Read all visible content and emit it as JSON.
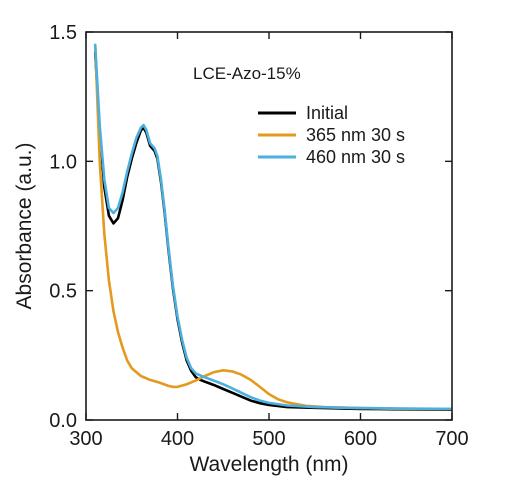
{
  "chart_data": {
    "type": "line",
    "title": "",
    "annotation": "LCE-Azo-15%",
    "xlabel": "Wavelength (nm)",
    "ylabel": "Absorbance (a.u.)",
    "xlim": [
      300,
      700
    ],
    "ylim": [
      0.0,
      1.5
    ],
    "x_ticks": [
      300,
      400,
      500,
      600,
      700
    ],
    "x_tick_labels": [
      "300",
      "400",
      "500",
      "600",
      "700"
    ],
    "y_ticks": [
      0.0,
      0.5,
      1.0,
      1.5
    ],
    "y_tick_labels": [
      "0.0",
      "0.5",
      "1.0",
      "1.5"
    ],
    "grid": false,
    "legend_position": "upper-right",
    "series": [
      {
        "name": "Initial",
        "color": "#000000",
        "points": [
          [
            310,
            1.42
          ],
          [
            315,
            1.12
          ],
          [
            320,
            0.9
          ],
          [
            325,
            0.79
          ],
          [
            330,
            0.76
          ],
          [
            335,
            0.78
          ],
          [
            340,
            0.85
          ],
          [
            345,
            0.94
          ],
          [
            350,
            1.01
          ],
          [
            355,
            1.07
          ],
          [
            360,
            1.12
          ],
          [
            363,
            1.13
          ],
          [
            366,
            1.11
          ],
          [
            370,
            1.06
          ],
          [
            375,
            1.04
          ],
          [
            378,
            1.01
          ],
          [
            382,
            0.92
          ],
          [
            386,
            0.8
          ],
          [
            390,
            0.66
          ],
          [
            395,
            0.51
          ],
          [
            400,
            0.39
          ],
          [
            405,
            0.3
          ],
          [
            410,
            0.23
          ],
          [
            415,
            0.19
          ],
          [
            420,
            0.165
          ],
          [
            425,
            0.155
          ],
          [
            430,
            0.148
          ],
          [
            440,
            0.135
          ],
          [
            450,
            0.12
          ],
          [
            460,
            0.105
          ],
          [
            470,
            0.09
          ],
          [
            480,
            0.075
          ],
          [
            490,
            0.065
          ],
          [
            500,
            0.058
          ],
          [
            520,
            0.05
          ],
          [
            550,
            0.047
          ],
          [
            600,
            0.043
          ],
          [
            650,
            0.041
          ],
          [
            700,
            0.04
          ]
        ]
      },
      {
        "name": "365 nm 30 s",
        "color": "#E39A1F",
        "points": [
          [
            310,
            1.45
          ],
          [
            315,
            1.0
          ],
          [
            320,
            0.72
          ],
          [
            325,
            0.54
          ],
          [
            330,
            0.42
          ],
          [
            335,
            0.34
          ],
          [
            340,
            0.28
          ],
          [
            345,
            0.23
          ],
          [
            350,
            0.2
          ],
          [
            355,
            0.185
          ],
          [
            360,
            0.17
          ],
          [
            370,
            0.155
          ],
          [
            380,
            0.145
          ],
          [
            390,
            0.132
          ],
          [
            395,
            0.128
          ],
          [
            400,
            0.128
          ],
          [
            410,
            0.138
          ],
          [
            420,
            0.153
          ],
          [
            430,
            0.17
          ],
          [
            440,
            0.185
          ],
          [
            450,
            0.192
          ],
          [
            460,
            0.188
          ],
          [
            470,
            0.175
          ],
          [
            480,
            0.155
          ],
          [
            490,
            0.128
          ],
          [
            500,
            0.1
          ],
          [
            510,
            0.08
          ],
          [
            520,
            0.068
          ],
          [
            540,
            0.055
          ],
          [
            560,
            0.05
          ],
          [
            600,
            0.046
          ],
          [
            650,
            0.043
          ],
          [
            700,
            0.042
          ]
        ]
      },
      {
        "name": "460 nm 30 s",
        "color": "#4BB0E0",
        "points": [
          [
            310,
            1.45
          ],
          [
            315,
            1.14
          ],
          [
            320,
            0.93
          ],
          [
            325,
            0.82
          ],
          [
            330,
            0.8
          ],
          [
            335,
            0.82
          ],
          [
            340,
            0.88
          ],
          [
            345,
            0.96
          ],
          [
            350,
            1.03
          ],
          [
            355,
            1.09
          ],
          [
            360,
            1.13
          ],
          [
            363,
            1.14
          ],
          [
            366,
            1.12
          ],
          [
            370,
            1.07
          ],
          [
            375,
            1.05
          ],
          [
            378,
            1.02
          ],
          [
            382,
            0.93
          ],
          [
            386,
            0.81
          ],
          [
            390,
            0.67
          ],
          [
            395,
            0.52
          ],
          [
            400,
            0.4
          ],
          [
            405,
            0.31
          ],
          [
            410,
            0.24
          ],
          [
            415,
            0.2
          ],
          [
            420,
            0.18
          ],
          [
            425,
            0.172
          ],
          [
            430,
            0.165
          ],
          [
            440,
            0.152
          ],
          [
            450,
            0.138
          ],
          [
            460,
            0.122
          ],
          [
            470,
            0.105
          ],
          [
            480,
            0.088
          ],
          [
            490,
            0.075
          ],
          [
            500,
            0.066
          ],
          [
            520,
            0.056
          ],
          [
            550,
            0.05
          ],
          [
            600,
            0.046
          ],
          [
            650,
            0.044
          ],
          [
            700,
            0.043
          ]
        ]
      }
    ]
  }
}
